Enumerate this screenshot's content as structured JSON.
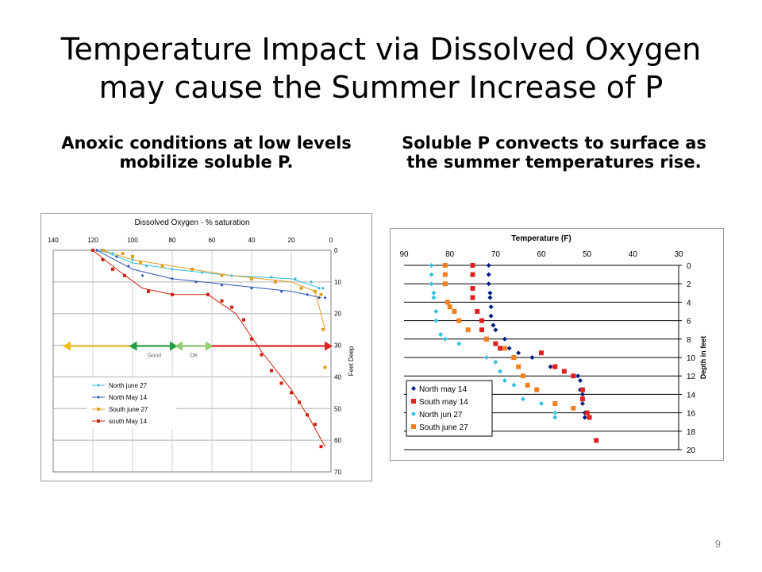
{
  "slide": {
    "title_line1": "Temperature Impact via Dissolved Oxygen",
    "title_line2": "may cause the Summer Increase of P",
    "subtitle_left_line1": "Anoxic conditions at low levels",
    "subtitle_left_line2": "mobilize soluble P.",
    "subtitle_right_line1": "Soluble P convects to surface as",
    "subtitle_right_line2": "the summer temperatures rise.",
    "page_number": "9"
  },
  "colors": {
    "north_june": "#33bbdd",
    "north_may": "#3355bb",
    "south_june": "#e0a020",
    "south_may": "#d02010",
    "arrow_yellow": "#f0c020",
    "arrow_green": "#20a040",
    "arrow_lightgreen": "#90d070",
    "arrow_red": "#e02020",
    "temp_north_may": "#001a80",
    "temp_south_may": "#e02020",
    "temp_north_jun": "#33c0e0",
    "temp_south_jun": "#f08020"
  },
  "chart_data": [
    {
      "type": "scatter",
      "title": "Dissolved Oxygen - % saturation",
      "ylabel": "Feet Deep",
      "xlim": [
        140,
        0
      ],
      "ylim": [
        0,
        70
      ],
      "x_ticks": [
        "140",
        "120",
        "100",
        "80",
        "60",
        "40",
        "20",
        "0"
      ],
      "y_ticks": [
        "0",
        "10",
        "20",
        "30",
        "40",
        "50",
        "60",
        "70"
      ],
      "zone_labels": [
        "Good",
        "OK"
      ],
      "legend": [
        "North june 27",
        "North May 14",
        "South june 27",
        "south May 14"
      ],
      "series": [
        {
          "name": "North june 27",
          "points": [
            [
              116,
              0
            ],
            [
              110,
              1
            ],
            [
              100,
              3
            ],
            [
              93,
              5
            ],
            [
              80,
              6
            ],
            [
              65,
              7
            ],
            [
              50,
              8
            ],
            [
              30,
              8.5
            ],
            [
              18,
              9
            ],
            [
              10,
              10
            ],
            [
              6,
              12
            ],
            [
              4,
              12
            ]
          ]
        },
        {
          "name": "North May 14",
          "points": [
            [
              118,
              0
            ],
            [
              108,
              2
            ],
            [
              102,
              5
            ],
            [
              95,
              8
            ],
            [
              80,
              9
            ],
            [
              68,
              10
            ],
            [
              55,
              11
            ],
            [
              40,
              12
            ],
            [
              25,
              13
            ],
            [
              12,
              14
            ],
            [
              6,
              15
            ],
            [
              3,
              15
            ]
          ]
        },
        {
          "name": "South june 27",
          "points": [
            [
              115,
              0
            ],
            [
              105,
              1
            ],
            [
              100,
              2
            ],
            [
              96,
              4
            ],
            [
              85,
              5
            ],
            [
              70,
              6
            ],
            [
              55,
              8
            ],
            [
              40,
              9
            ],
            [
              28,
              10
            ],
            [
              15,
              12
            ],
            [
              8,
              13
            ],
            [
              5,
              14
            ],
            [
              4,
              25
            ],
            [
              3,
              37
            ]
          ]
        },
        {
          "name": "south May 14",
          "points": [
            [
              120,
              0
            ],
            [
              115,
              3
            ],
            [
              110,
              6
            ],
            [
              104,
              8
            ],
            [
              92,
              13
            ],
            [
              80,
              14
            ],
            [
              62,
              14
            ],
            [
              55,
              16
            ],
            [
              50,
              18
            ],
            [
              44,
              22
            ],
            [
              40,
              28
            ],
            [
              35,
              33
            ],
            [
              30,
              38
            ],
            [
              25,
              42
            ],
            [
              20,
              45
            ],
            [
              16,
              48
            ],
            [
              12,
              52
            ],
            [
              8,
              55
            ],
            [
              5,
              62
            ]
          ]
        }
      ],
      "trend_lines": [
        {
          "name": "North june 27",
          "points": [
            [
              116,
              0
            ],
            [
              100,
              4
            ],
            [
              80,
              6
            ],
            [
              50,
              8
            ],
            [
              20,
              9
            ],
            [
              5,
              12
            ]
          ]
        },
        {
          "name": "North May 14",
          "points": [
            [
              118,
              0
            ],
            [
              100,
              6
            ],
            [
              80,
              9
            ],
            [
              50,
              11
            ],
            [
              20,
              13
            ],
            [
              5,
              15
            ]
          ]
        },
        {
          "name": "South june 27",
          "points": [
            [
              115,
              0
            ],
            [
              100,
              3
            ],
            [
              80,
              5
            ],
            [
              50,
              8
            ],
            [
              20,
              10
            ],
            [
              8,
              13
            ],
            [
              3,
              25
            ]
          ]
        },
        {
          "name": "south May 14",
          "points": [
            [
              120,
              0
            ],
            [
              108,
              6
            ],
            [
              95,
              12
            ],
            [
              80,
              14
            ],
            [
              62,
              14
            ],
            [
              48,
              20
            ],
            [
              35,
              32
            ],
            [
              20,
              44
            ],
            [
              10,
              54
            ],
            [
              3,
              62
            ]
          ]
        }
      ]
    },
    {
      "type": "scatter",
      "title": "Temperature (F)",
      "ylabel": "Depth in feet",
      "xlim": [
        90,
        30
      ],
      "ylim": [
        0,
        20
      ],
      "x_ticks": [
        "90",
        "80",
        "70",
        "60",
        "50",
        "40",
        "30"
      ],
      "y_ticks": [
        "0",
        "2",
        "4",
        "6",
        "8",
        "10",
        "12",
        "14",
        "16",
        "18",
        "20"
      ],
      "legend": [
        "North may 14",
        "South may 14",
        "North jun 27",
        "South june 27"
      ],
      "series": [
        {
          "name": "North may 14",
          "points": [
            [
              71.5,
              0
            ],
            [
              71.5,
              1
            ],
            [
              71.5,
              2
            ],
            [
              71.2,
              3
            ],
            [
              71.2,
              3.5
            ],
            [
              71,
              4.5
            ],
            [
              71,
              5.5
            ],
            [
              70.5,
              6.5
            ],
            [
              70,
              7
            ],
            [
              68,
              8
            ],
            [
              67,
              9
            ],
            [
              65,
              9.5
            ],
            [
              62,
              10
            ],
            [
              58,
              11
            ],
            [
              52,
              12
            ],
            [
              51.5,
              12.5
            ],
            [
              51.5,
              13.5
            ],
            [
              51,
              14
            ],
            [
              51,
              15
            ],
            [
              50.5,
              16
            ],
            [
              50.5,
              16.5
            ]
          ]
        },
        {
          "name": "South may 14",
          "points": [
            [
              75,
              0
            ],
            [
              75,
              1
            ],
            [
              75,
              2.5
            ],
            [
              75,
              3.5
            ],
            [
              74,
              5
            ],
            [
              73,
              6
            ],
            [
              73,
              7
            ],
            [
              72,
              8
            ],
            [
              70,
              8.5
            ],
            [
              69,
              9
            ],
            [
              60,
              9.5
            ],
            [
              57,
              11
            ],
            [
              55,
              11.5
            ],
            [
              53,
              12
            ],
            [
              51,
              13.5
            ],
            [
              51,
              14.5
            ],
            [
              50,
              16
            ],
            [
              49.5,
              16.5
            ],
            [
              48,
              19
            ]
          ]
        },
        {
          "name": "North jun 27",
          "points": [
            [
              84,
              0
            ],
            [
              84,
              1
            ],
            [
              84,
              2
            ],
            [
              83.5,
              3
            ],
            [
              83.5,
              3.5
            ],
            [
              83,
              5
            ],
            [
              83,
              6
            ],
            [
              82,
              7.5
            ],
            [
              81,
              8
            ],
            [
              78,
              8.5
            ],
            [
              72,
              10
            ],
            [
              70,
              10.5
            ],
            [
              69,
              11.5
            ],
            [
              68,
              12.5
            ],
            [
              66,
              13
            ],
            [
              64,
              14.5
            ],
            [
              60,
              15
            ],
            [
              57,
              16
            ],
            [
              57,
              16.5
            ]
          ]
        },
        {
          "name": "South june 27",
          "points": [
            [
              81,
              0
            ],
            [
              81,
              1
            ],
            [
              81,
              2
            ],
            [
              80.5,
              4
            ],
            [
              80,
              4.5
            ],
            [
              79,
              5
            ],
            [
              78,
              6
            ],
            [
              76,
              7
            ],
            [
              72,
              8
            ],
            [
              68,
              9
            ],
            [
              66,
              10
            ],
            [
              65,
              11
            ],
            [
              64,
              12
            ],
            [
              63,
              13
            ],
            [
              61,
              13.5
            ],
            [
              57,
              15
            ],
            [
              53,
              15.5
            ]
          ]
        }
      ]
    }
  ]
}
